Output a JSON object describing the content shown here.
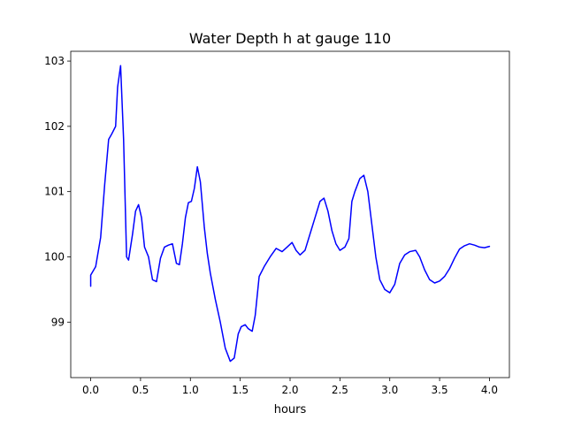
{
  "chart_data": {
    "type": "line",
    "title": "Water Depth h at gauge 110",
    "xlabel": "hours",
    "ylabel": "",
    "xlim": [
      -0.2,
      4.2
    ],
    "ylim": [
      98.15,
      103.15
    ],
    "xticks": [
      0.0,
      0.5,
      1.0,
      1.5,
      2.0,
      2.5,
      3.0,
      3.5,
      4.0
    ],
    "xtick_labels": [
      "0.0",
      "0.5",
      "1.0",
      "1.5",
      "2.0",
      "2.5",
      "3.0",
      "3.5",
      "4.0"
    ],
    "yticks": [
      99,
      100,
      101,
      102,
      103
    ],
    "ytick_labels": [
      "99",
      "100",
      "101",
      "102",
      "103"
    ],
    "grid": false,
    "legend": "none",
    "series": [
      {
        "color": "#0000ff",
        "x": [
          0.0,
          0.0,
          0.05,
          0.1,
          0.14,
          0.18,
          0.21,
          0.25,
          0.27,
          0.3,
          0.33,
          0.36,
          0.38,
          0.42,
          0.45,
          0.48,
          0.51,
          0.54,
          0.58,
          0.62,
          0.66,
          0.7,
          0.74,
          0.78,
          0.82,
          0.86,
          0.89,
          0.92,
          0.95,
          0.98,
          1.01,
          1.04,
          1.07,
          1.1,
          1.14,
          1.17,
          1.2,
          1.25,
          1.3,
          1.35,
          1.4,
          1.44,
          1.48,
          1.51,
          1.55,
          1.58,
          1.62,
          1.65,
          1.69,
          1.74,
          1.8,
          1.86,
          1.92,
          1.97,
          2.02,
          2.06,
          2.1,
          2.15,
          2.2,
          2.25,
          2.3,
          2.34,
          2.38,
          2.42,
          2.46,
          2.5,
          2.55,
          2.59,
          2.62,
          2.65,
          2.7,
          2.74,
          2.78,
          2.82,
          2.86,
          2.9,
          2.95,
          3.0,
          3.05,
          3.1,
          3.15,
          3.2,
          3.26,
          3.3,
          3.35,
          3.4,
          3.45,
          3.5,
          3.55,
          3.6,
          3.65,
          3.7,
          3.75,
          3.8,
          3.85,
          3.9,
          3.95,
          4.0
        ],
        "y": [
          99.55,
          99.72,
          99.85,
          100.3,
          101.1,
          101.8,
          101.88,
          102.0,
          102.6,
          102.93,
          101.8,
          100.0,
          99.95,
          100.35,
          100.7,
          100.8,
          100.6,
          100.15,
          100.0,
          99.65,
          99.62,
          99.98,
          100.15,
          100.18,
          100.2,
          99.9,
          99.88,
          100.2,
          100.6,
          100.83,
          100.85,
          101.05,
          101.38,
          101.15,
          100.45,
          100.05,
          99.75,
          99.35,
          99.0,
          98.6,
          98.4,
          98.45,
          98.82,
          98.93,
          98.96,
          98.9,
          98.86,
          99.1,
          99.7,
          99.85,
          100.0,
          100.13,
          100.08,
          100.15,
          100.22,
          100.1,
          100.03,
          100.1,
          100.35,
          100.6,
          100.85,
          100.9,
          100.7,
          100.4,
          100.2,
          100.1,
          100.15,
          100.28,
          100.85,
          101.0,
          101.2,
          101.25,
          101.0,
          100.5,
          100.0,
          99.65,
          99.5,
          99.45,
          99.58,
          99.9,
          100.03,
          100.08,
          100.1,
          100.0,
          99.8,
          99.65,
          99.6,
          99.63,
          99.7,
          99.82,
          99.98,
          100.12,
          100.17,
          100.2,
          100.18,
          100.15,
          100.14,
          100.16
        ]
      }
    ]
  }
}
